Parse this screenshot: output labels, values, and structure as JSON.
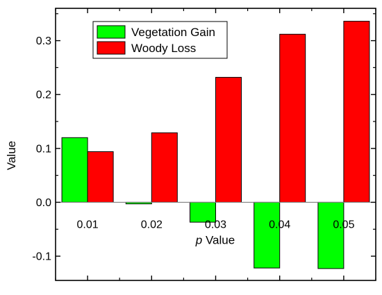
{
  "colors": {
    "vegetation_gain": "#00ff00",
    "woody_loss": "#ff0000",
    "axis": "#000000",
    "zero_line": "#7f7f7f"
  },
  "chart_data": {
    "type": "bar",
    "title": "",
    "xlabel_prefix": "p",
    "xlabel_suffix": " Value",
    "ylabel": "Value",
    "categories": [
      "0.01",
      "0.02",
      "0.03",
      "0.04",
      "0.05"
    ],
    "series": [
      {
        "name": "Vegetation Gain",
        "color": "#00ff00",
        "values": [
          0.12,
          -0.003,
          -0.037,
          -0.122,
          -0.123
        ]
      },
      {
        "name": "Woody Loss",
        "color": "#ff0000",
        "values": [
          0.094,
          0.129,
          0.232,
          0.312,
          0.336
        ]
      }
    ],
    "ylim": [
      -0.145,
      0.36
    ],
    "yticks": [
      -0.1,
      0.0,
      0.1,
      0.2,
      0.3
    ],
    "ytick_labels": [
      "-0.1",
      "0.0",
      "0.1",
      "0.2",
      "0.3"
    ],
    "grid": false,
    "legend_position": "top-left"
  }
}
